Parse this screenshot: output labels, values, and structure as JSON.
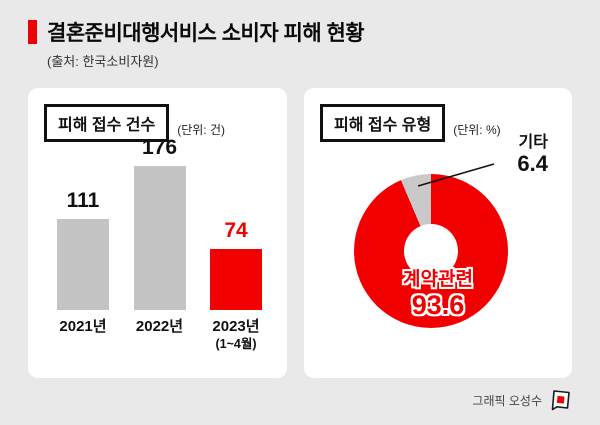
{
  "header": {
    "title": "결혼준비대행서비스 소비자 피해 현황",
    "source": "(출처: 한국소비자원)"
  },
  "left_panel": {
    "title": "피해 접수 건수",
    "unit": "(단위: 건)"
  },
  "right_panel": {
    "title": "피해 접수 유형",
    "unit": "(단위: %)"
  },
  "footer": {
    "credit": "그래픽 오성수"
  },
  "colors": {
    "accent_red": "#f20000",
    "bar_gray": "#c4c4c4",
    "donut_gray": "#c9c9c9",
    "background": "#e9e9e9",
    "panel": "#ffffff"
  },
  "chart_data": [
    {
      "type": "bar",
      "title": "피해 접수 건수",
      "unit": "건",
      "categories": [
        "2021년",
        "2022년",
        "2023년"
      ],
      "category_notes": [
        "",
        "",
        "(1~4월)"
      ],
      "values": [
        111,
        176,
        74
      ],
      "bar_colors": [
        "#c4c4c4",
        "#c4c4c4",
        "#f20000"
      ],
      "value_label_colors": [
        "#111111",
        "#111111",
        "#f20000"
      ],
      "ylim": [
        0,
        176
      ],
      "legend": "none",
      "grid": false
    },
    {
      "type": "pie",
      "title": "피해 접수 유형",
      "unit": "%",
      "donut": true,
      "slices": [
        {
          "label": "계약관련",
          "value": 93.6,
          "color": "#f20000"
        },
        {
          "label": "기타",
          "value": 6.4,
          "color": "#c9c9c9"
        }
      ]
    }
  ]
}
